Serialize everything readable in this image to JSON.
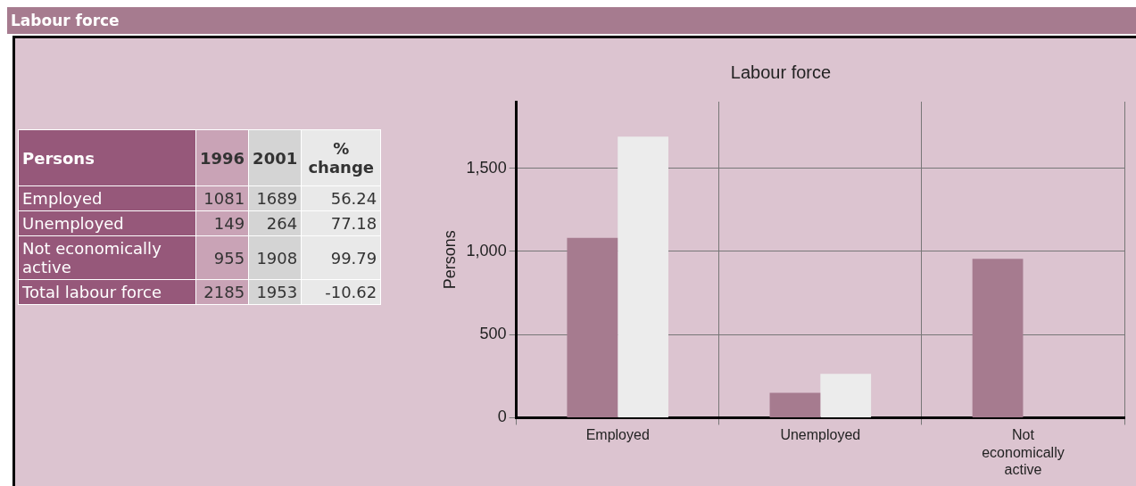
{
  "chart_data": [
    {
      "type": "other",
      "title": "Labour force",
      "legend_title": "Persons",
      "categories": [
        "Employed",
        "Unemployed",
        "Not economically active",
        "Total labour force"
      ],
      "annotations": [
        "1996",
        "2001",
        "% change",
        "1081",
        "1689",
        "56.24",
        "149",
        "264",
        "77.18",
        "955",
        "1908",
        "99.79",
        "2185",
        "1953",
        "-10.62"
      ]
    },
    {
      "type": "bar",
      "title": "Labour force",
      "ylabel": "Persons",
      "categories": [
        "Employed",
        "Unemployed",
        "Not economically active"
      ],
      "series": [
        {
          "color": "#a67b8f",
          "values": [
            1081,
            149,
            955
          ]
        },
        {
          "color": "#ececec",
          "values": [
            1689,
            264,
            null
          ]
        }
      ],
      "ylim": [
        0,
        1900
      ],
      "yticks": [
        0,
        500,
        {
          "value": 1000,
          "label": "1,000"
        },
        {
          "value": 1500,
          "label": "1,500"
        }
      ],
      "grid": true
    }
  ]
}
